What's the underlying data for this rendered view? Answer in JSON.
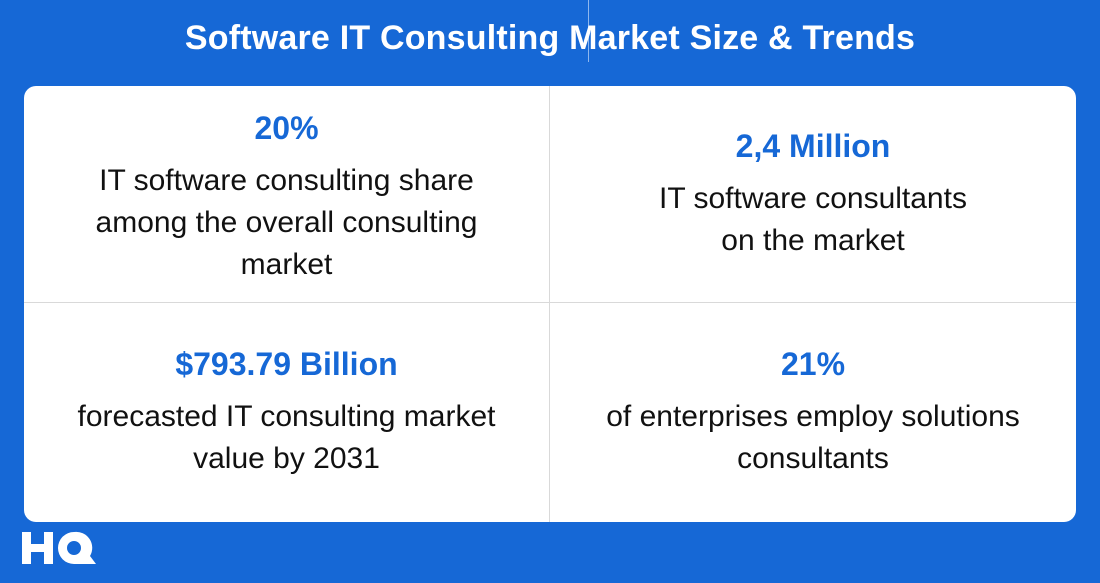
{
  "header": {
    "title": "Software IT Consulting Market Size & Trends"
  },
  "stats": [
    {
      "value": "20%",
      "line1": "IT software consulting share",
      "line2": "among the overall consulting",
      "line3": "market"
    },
    {
      "value": "2,4 Million",
      "line1": "IT software consultants",
      "line2": "on the market"
    },
    {
      "value": "$793.79 Billion",
      "line1": "forecasted IT consulting market",
      "line2": "value by 2031"
    },
    {
      "value": "21%",
      "line1": "of enterprises employ solutions",
      "line2": "consultants"
    }
  ],
  "logo": {
    "text": "HQ"
  },
  "colors": {
    "background": "#1668d6",
    "accent": "#1668d6",
    "card": "#ffffff"
  }
}
